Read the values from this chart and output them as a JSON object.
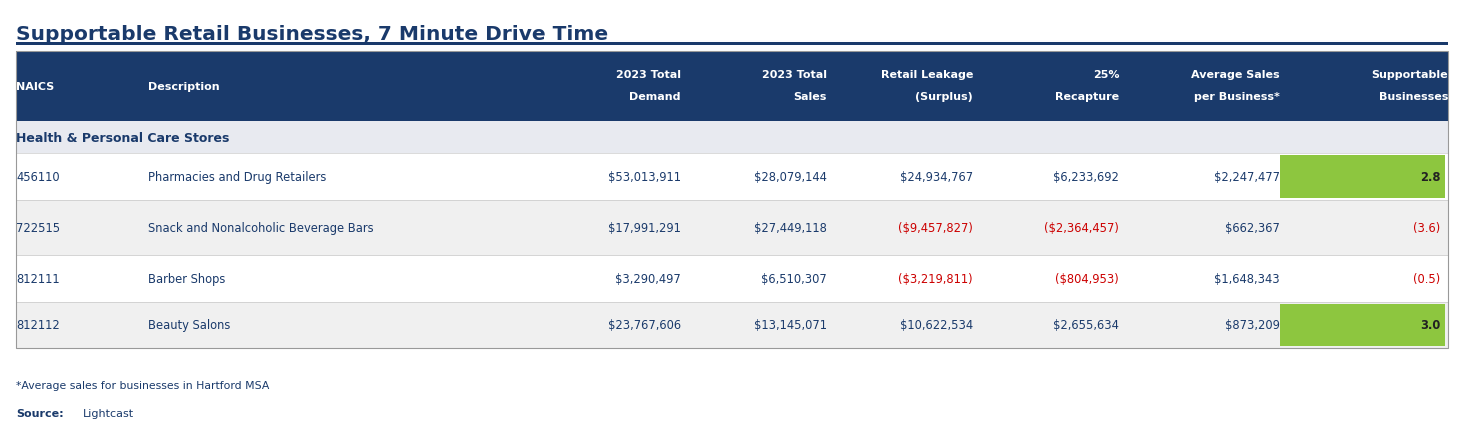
{
  "title": "Supportable Retail Businesses, 7 Minute Drive Time",
  "header_text_color": "#ffffff",
  "section_bg": "#e8eaf0",
  "columns": [
    "NAICS",
    "Description",
    "2023 Total\nDemand",
    "2023 Total\nSales",
    "Retail Leakage\n(Surplus)",
    "25%\nRecapture",
    "Average Sales\nper Business*",
    "Supportable\nBusinesses"
  ],
  "section_label": "Health & Personal Care Stores",
  "rows": [
    {
      "naics": "456110",
      "description": "Pharmacies and Drug Retailers",
      "demand": "$53,013,911",
      "sales": "$28,079,144",
      "leakage": "$24,934,767",
      "recapture": "$6,233,692",
      "avg_sales": "$2,247,477",
      "supportable": "2.8",
      "leakage_red": false,
      "recapture_red": false,
      "supportable_green": true,
      "supportable_red": false
    },
    {
      "naics": "722515",
      "description": "Snack and Nonalcoholic Beverage Bars",
      "demand": "$17,991,291",
      "sales": "$27,449,118",
      "leakage": "($9,457,827)",
      "recapture": "($2,364,457)",
      "avg_sales": "$662,367",
      "supportable": "(3.6)",
      "leakage_red": true,
      "recapture_red": true,
      "supportable_green": false,
      "supportable_red": true
    },
    {
      "naics": "812111",
      "description": "Barber Shops",
      "demand": "$3,290,497",
      "sales": "$6,510,307",
      "leakage": "($3,219,811)",
      "recapture": "($804,953)",
      "avg_sales": "$1,648,343",
      "supportable": "(0.5)",
      "leakage_red": true,
      "recapture_red": true,
      "supportable_green": false,
      "supportable_red": true
    },
    {
      "naics": "812112",
      "description": "Beauty Salons",
      "demand": "$23,767,606",
      "sales": "$13,145,071",
      "leakage": "$10,622,534",
      "recapture": "$2,655,634",
      "avg_sales": "$873,209",
      "supportable": "3.0",
      "leakage_red": false,
      "recapture_red": false,
      "supportable_green": true,
      "supportable_red": false
    }
  ],
  "footnote": "*Average sales for businesses in Hartford MSA",
  "source_label": "Source:",
  "source_value": "Lightcast",
  "dark_blue": "#1a3a6b",
  "red_color": "#cc0000",
  "green_color": "#8dc63f",
  "row_bgs": [
    "#ffffff",
    "#f0f0f0",
    "#ffffff",
    "#f0f0f0"
  ]
}
